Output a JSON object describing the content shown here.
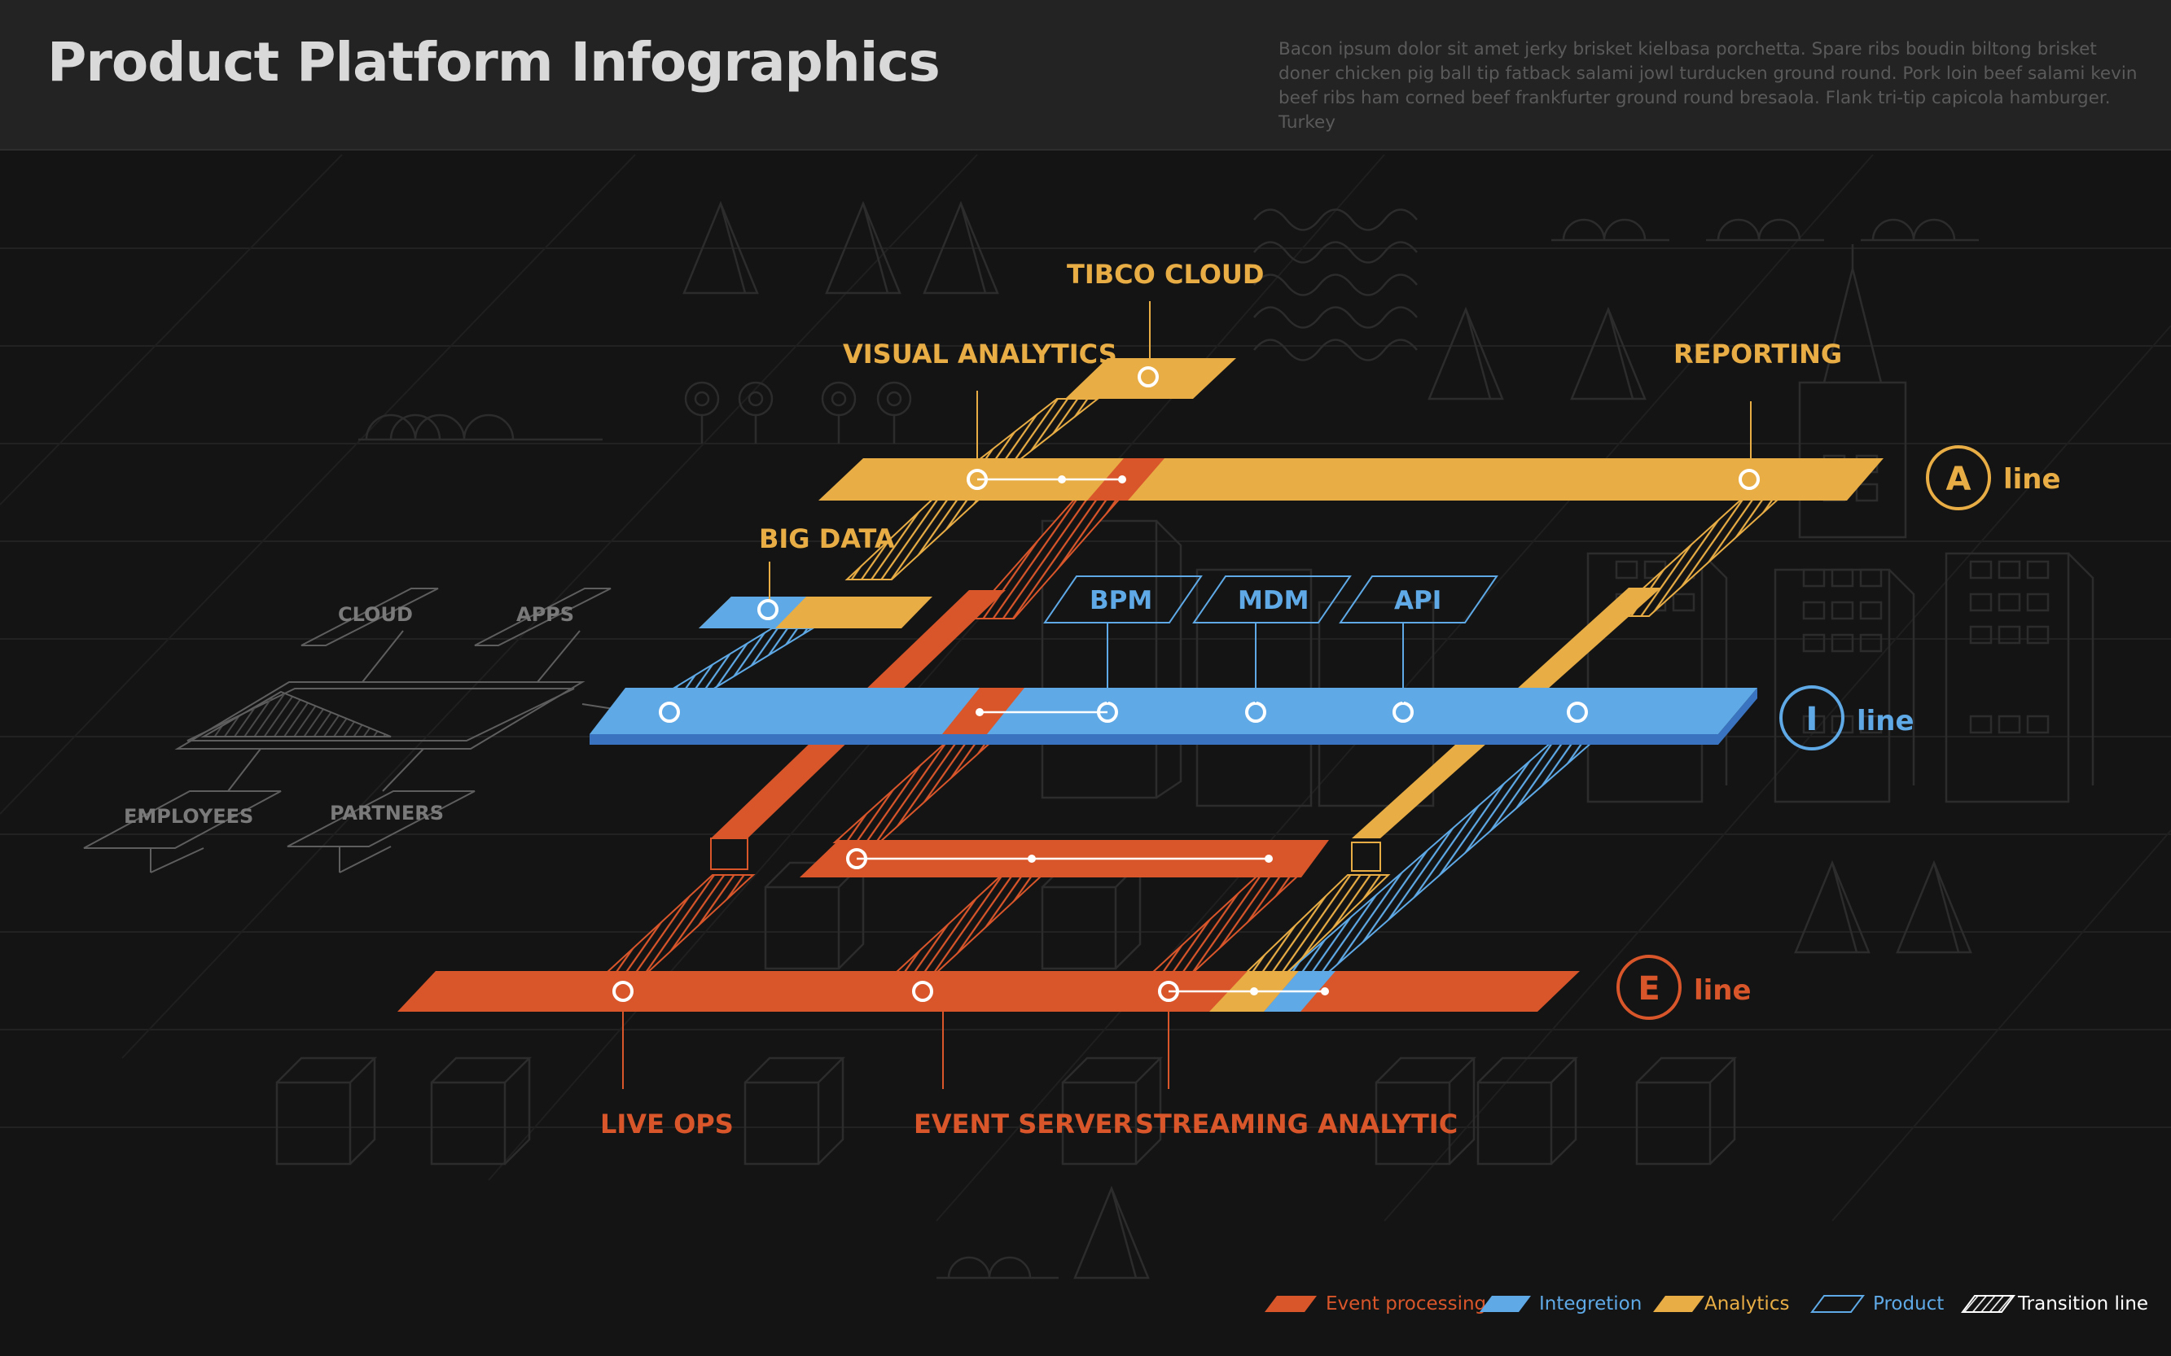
{
  "header": {
    "title": "Product Platform Infographics",
    "description": "Bacon ipsum dolor sit amet jerky brisket kielbasa porchetta. Spare ribs boudin biltong brisket doner chicken pig ball tip fatback salami jowl turducken ground round. Pork loin beef salami kevin beef ribs ham corned beef frankfurter ground round bresaola. Flank tri-tip capicola hamburger. Turkey"
  },
  "colors": {
    "analytics": "#e8ad45",
    "integration": "#5ea9e6",
    "event": "#d9562b",
    "ghost": "#6b6b6b"
  },
  "lines": {
    "a": {
      "letter": "A",
      "word": "line"
    },
    "i": {
      "letter": "I",
      "word": "line"
    },
    "e": {
      "letter": "E",
      "word": "line"
    }
  },
  "labels": {
    "tibco_cloud": "TIBCO CLOUD",
    "visual_analytics": "VISUAL ANALYTICS",
    "reporting": "REPORTING",
    "big_data": "BIG DATA",
    "bpm": "BPM",
    "mdm": "MDM",
    "api": "API",
    "live_ops": "LIVE OPS",
    "event_server": "EVENT SERVER",
    "streaming_analytic": "STREAMING ANALYTIC",
    "cloud": "CLOUD",
    "apps": "APPS",
    "employees": "EMPLOYEES",
    "partners": "PARTNERS"
  },
  "legend": [
    {
      "label": "Event processing",
      "icon": "event-processing-swatch",
      "color": "#d9562b"
    },
    {
      "label": "Integretion",
      "icon": "integration-swatch",
      "color": "#5ea9e6"
    },
    {
      "label": "Analytics",
      "icon": "analytics-swatch",
      "color": "#e8ad45"
    },
    {
      "label": "Product",
      "icon": "product-outline-swatch",
      "color": "#5ea9e6"
    },
    {
      "label": "Transition line",
      "icon": "transition-hatch-swatch",
      "color": "#ffffff"
    }
  ]
}
